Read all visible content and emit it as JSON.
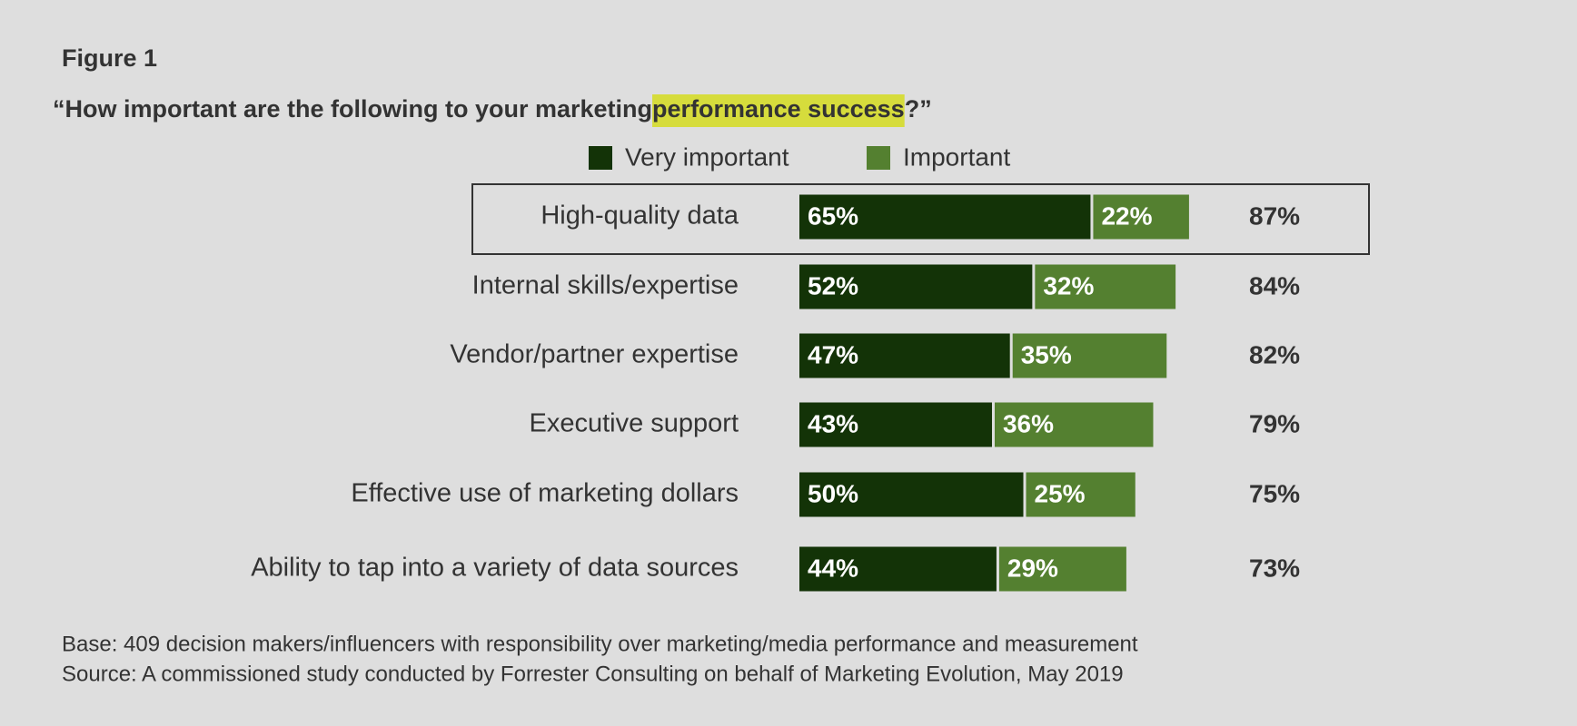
{
  "chart_data": {
    "type": "stacked_bar_horizontal",
    "title": "Figure 1",
    "subtitle": {
      "before": "“How important are the following to your marketing ",
      "highlight": "performance success",
      "after": "?”"
    },
    "highlight_color": "#d6dc3c",
    "categories": [
      "High-quality data",
      "Internal skills/expertise",
      "Vendor/partner expertise",
      "Executive support",
      "Effective use of marketing dollars",
      "Ability to tap into a variety of data sources"
    ],
    "series": [
      {
        "name": "Very important",
        "color": "#133307",
        "values": [
          65,
          52,
          47,
          43,
          50,
          44
        ],
        "value_labels": [
          "65%",
          "52%",
          "47%",
          "43%",
          "50%",
          "44%"
        ]
      },
      {
        "name": "Important",
        "color": "#548030",
        "values": [
          22,
          32,
          35,
          36,
          25,
          29
        ],
        "value_labels": [
          "22%",
          "32%",
          "35%",
          "36%",
          "25%",
          "29%"
        ]
      }
    ],
    "totals": {
      "values": [
        87,
        84,
        82,
        79,
        75,
        73
      ],
      "value_labels": [
        "87%",
        "84%",
        "82%",
        "79%",
        "75%",
        "73%"
      ]
    },
    "xlim": [
      0,
      100
    ],
    "notes": [
      "Base: 409 decision makers/influencers with responsibility over marketing/media performance and measurement",
      "Source: A commissioned study conducted by Forrester Consulting on behalf of Marketing Evolution, May 2019"
    ]
  }
}
